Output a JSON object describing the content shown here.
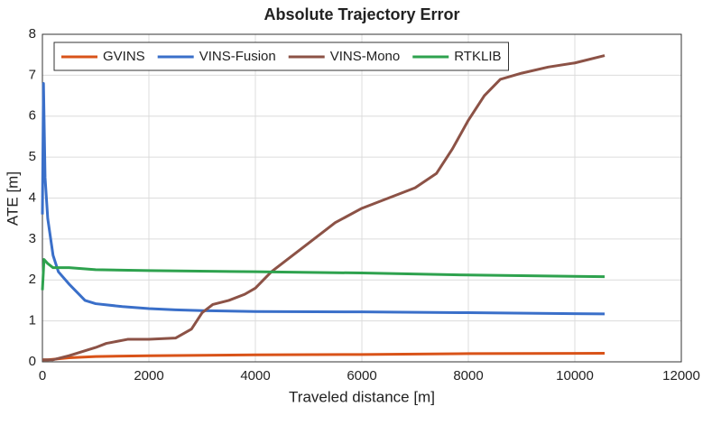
{
  "chart_data": {
    "type": "line",
    "title": "Absolute Trajectory Error",
    "x_label": "Traveled distance [m]",
    "y_label": "ATE [m]",
    "xlim": [
      0,
      12000
    ],
    "ylim": [
      0,
      8
    ],
    "xticks": [
      0,
      2000,
      4000,
      6000,
      8000,
      10000,
      12000
    ],
    "yticks": [
      0,
      1,
      2,
      3,
      4,
      5,
      6,
      7,
      8
    ],
    "grid": true,
    "legend": "upper-left",
    "series": [
      {
        "name": "GVINS",
        "color": "#d95319",
        "x": [
          0,
          100,
          500,
          1000,
          2000,
          4000,
          6000,
          8000,
          10560
        ],
        "values": [
          0.05,
          0.05,
          0.1,
          0.13,
          0.15,
          0.17,
          0.18,
          0.2,
          0.21
        ]
      },
      {
        "name": "VINS-Fusion",
        "color": "#3a6fc9",
        "x": [
          0,
          20,
          50,
          100,
          200,
          300,
          500,
          800,
          1000,
          1500,
          2000,
          2500,
          3000,
          4000,
          6000,
          8000,
          10560
        ],
        "values": [
          3.6,
          6.8,
          4.5,
          3.5,
          2.6,
          2.2,
          1.9,
          1.5,
          1.42,
          1.35,
          1.3,
          1.27,
          1.25,
          1.23,
          1.22,
          1.2,
          1.17
        ]
      },
      {
        "name": "VINS-Mono",
        "color": "#8c5246",
        "x": [
          0,
          200,
          500,
          1000,
          1200,
          1600,
          2000,
          2500,
          2800,
          3000,
          3200,
          3500,
          3800,
          4000,
          4300,
          4600,
          5000,
          5500,
          6000,
          6500,
          7000,
          7400,
          7700,
          8000,
          8300,
          8600,
          9000,
          9500,
          10000,
          10560
        ],
        "values": [
          0.05,
          0.05,
          0.15,
          0.35,
          0.45,
          0.55,
          0.55,
          0.58,
          0.8,
          1.2,
          1.4,
          1.5,
          1.65,
          1.8,
          2.2,
          2.5,
          2.9,
          3.4,
          3.75,
          4.0,
          4.25,
          4.6,
          5.2,
          5.9,
          6.5,
          6.9,
          7.05,
          7.2,
          7.3,
          7.48
        ]
      },
      {
        "name": "RTKLIB",
        "color": "#2ea24e",
        "x": [
          0,
          30,
          100,
          200,
          500,
          1000,
          2000,
          4000,
          6000,
          8000,
          10560
        ],
        "values": [
          1.75,
          2.5,
          2.4,
          2.3,
          2.3,
          2.25,
          2.23,
          2.2,
          2.17,
          2.12,
          2.08
        ]
      }
    ]
  }
}
